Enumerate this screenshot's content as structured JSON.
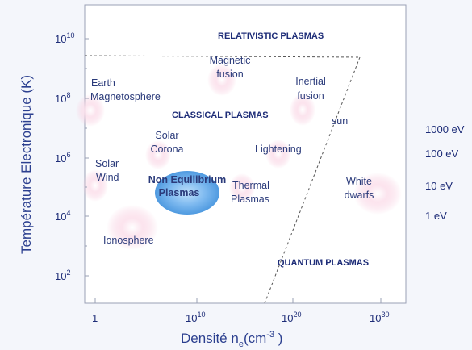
{
  "axes": {
    "y_title": "Température Electronique (K)",
    "x_title_main": "Densité n",
    "x_title_sub": "e",
    "x_title_unit": "(cm",
    "x_title_exp": "-3",
    "x_title_close": " )",
    "y_ticks": [
      {
        "base": "10",
        "exp": "10"
      },
      {
        "base": "10",
        "exp": "8"
      },
      {
        "base": "10",
        "exp": "6"
      },
      {
        "base": "10",
        "exp": "4"
      },
      {
        "base": "10",
        "exp": "2"
      }
    ],
    "x_ticks": [
      {
        "base": "1",
        "exp": ""
      },
      {
        "base": "10",
        "exp": "10"
      },
      {
        "base": "10",
        "exp": "20"
      },
      {
        "base": "10",
        "exp": "30"
      }
    ]
  },
  "region_labels": {
    "relativistic": "RELATIVISTIC PLASMAS",
    "classical": "CLASSICAL PLASMAS",
    "quantum": "QUANTUM PLASMAS",
    "non_eq_1": "Non Equilibrium",
    "non_eq_2": "Plasmas"
  },
  "plasma_labels": {
    "earth_1": "Earth",
    "earth_2": "Magnetosphere",
    "magnetic_1": "Magnetic",
    "magnetic_2": "fusion",
    "inertial_1": "Inertial",
    "inertial_2": "fusion",
    "sun": "sun",
    "solar_corona_1": "Solar",
    "solar_corona_2": "Corona",
    "lightening": "Lightening",
    "solar_wind_1": "Solar",
    "solar_wind_2": "Wind",
    "thermal_1": "Thermal",
    "thermal_2": "Plasmas",
    "white_1": "White",
    "white_2": "dwarfs",
    "ionosphere": "Ionosphere"
  },
  "energy_labels": [
    "1000 eV",
    "100 eV",
    "10 eV",
    "1 eV"
  ],
  "colors": {
    "axis_text": "#1e2d78",
    "non_eq_ellipse": "#5aa6e6",
    "glow": "#f7c8dc"
  }
}
